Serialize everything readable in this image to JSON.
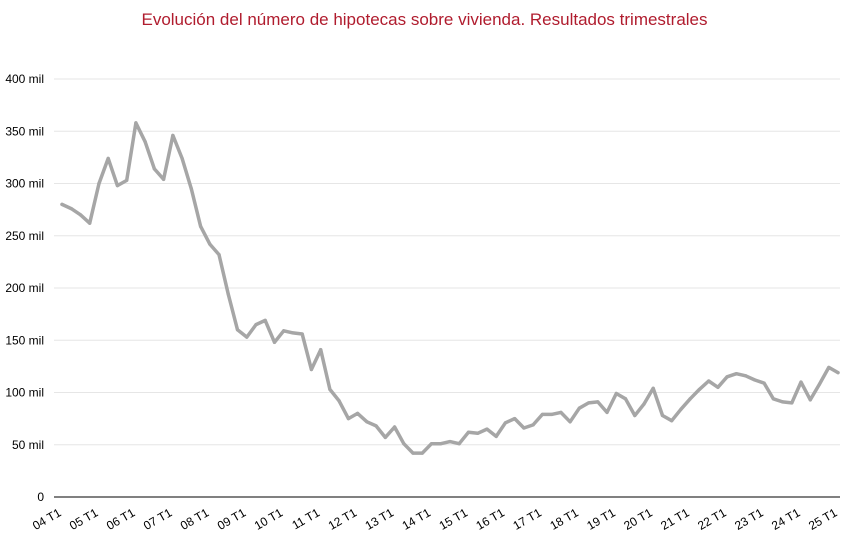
{
  "chart_data": {
    "type": "line",
    "title": "Evolución del número de hipotecas sobre vivienda. Resultados trimestrales",
    "xlabel": "",
    "ylabel": "",
    "ylim": [
      0,
      400000
    ],
    "y_ticks": [
      {
        "value": 0,
        "label": "0"
      },
      {
        "value": 50000,
        "label": "50 mil"
      },
      {
        "value": 100000,
        "label": "100 mil"
      },
      {
        "value": 150000,
        "label": "150 mil"
      },
      {
        "value": 200000,
        "label": "200 mil"
      },
      {
        "value": 250000,
        "label": "250 mil"
      },
      {
        "value": 300000,
        "label": "300 mil"
      },
      {
        "value": 350000,
        "label": "350 mil"
      },
      {
        "value": 400000,
        "label": "400 mil"
      }
    ],
    "x_tick_labels": [
      "04 T1",
      "05 T1",
      "06 T1",
      "07 T1",
      "08 T1",
      "09 T1",
      "10 T1",
      "11 T1",
      "12 T1",
      "13 T1",
      "14 T1",
      "15 T1",
      "16 T1",
      "17 T1",
      "18 T1",
      "19 T1",
      "20 T1",
      "21 T1",
      "22 T1",
      "23 T1",
      "24 T1",
      "25 T1"
    ],
    "grid": true,
    "legend": "none",
    "colors": {
      "line": "#a6a6a6",
      "grid": "#e6e6e6",
      "axis": "#000000",
      "title": "#b01c2e"
    },
    "series": [
      {
        "values": [
          280000,
          276000,
          270000,
          262000,
          300000,
          324000,
          298000,
          303000,
          358000,
          340000,
          314000,
          304000,
          346000,
          324000,
          295000,
          259000,
          242000,
          232000,
          194000,
          160000,
          153000,
          165000,
          169000,
          148000,
          159000,
          157000,
          156000,
          122000,
          141000,
          103000,
          92000,
          75000,
          80000,
          72000,
          68000,
          57000,
          67000,
          51000,
          42000,
          42000,
          51000,
          51000,
          53000,
          51000,
          62000,
          61000,
          65000,
          58000,
          71000,
          75000,
          66000,
          69000,
          79000,
          79000,
          81000,
          72000,
          85000,
          90000,
          91000,
          81000,
          99000,
          94000,
          78000,
          89000,
          104000,
          78000,
          73000,
          84000,
          94000,
          103000,
          111000,
          105000,
          115000,
          118000,
          116000,
          112000,
          109000,
          94000,
          91000,
          90000,
          110000,
          93000,
          108000,
          124000,
          119000
        ]
      }
    ]
  }
}
